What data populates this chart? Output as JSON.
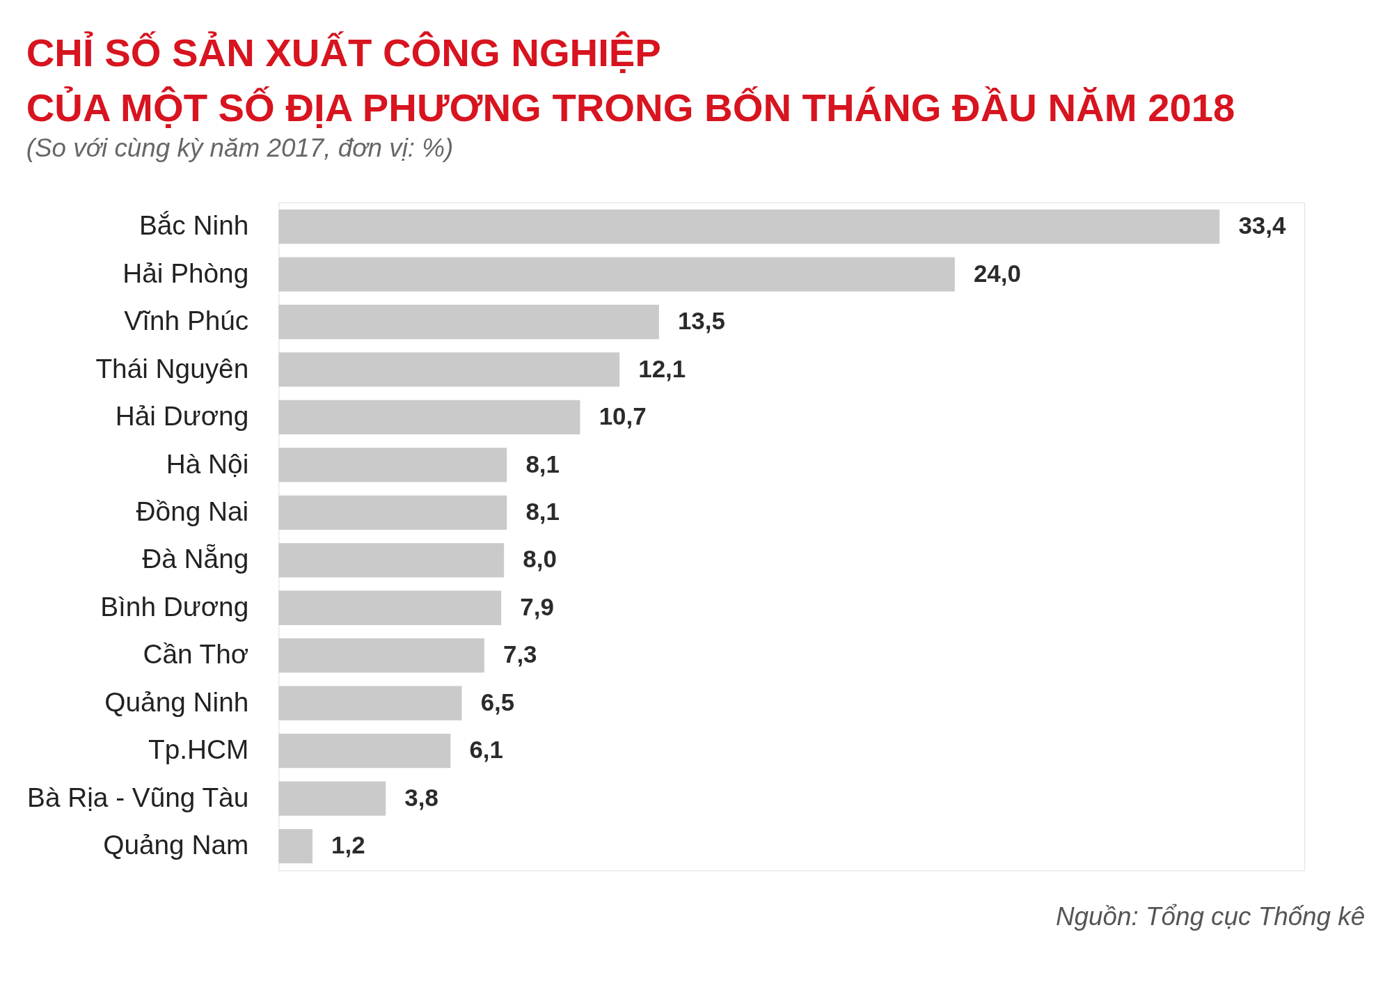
{
  "chart_data": {
    "type": "bar",
    "orientation": "horizontal",
    "title": [
      "CHỈ SỐ SẢN XUẤT CÔNG NGHIỆP",
      "CỦA MỘT SỐ ĐỊA PHƯƠNG TRONG BỐN THÁNG ĐẦU NĂM 2018"
    ],
    "subtitle": "(So với cùng kỳ năm 2017, đơn vị: %)",
    "categories": [
      "Bắc Ninh",
      "Hải Phòng",
      "Vĩnh Phúc",
      "Thái Nguyên",
      "Hải Dương",
      "Hà Nội",
      "Đồng Nai",
      "Đà Nẵng",
      "Bình Dương",
      "Cần Thơ",
      "Quảng Ninh",
      "Tp.HCM",
      "Bà Rịa - Vũng Tàu",
      "Quảng Nam"
    ],
    "values": [
      33.4,
      24.0,
      13.5,
      12.1,
      10.7,
      8.1,
      8.1,
      8.0,
      7.9,
      7.3,
      6.5,
      6.1,
      3.8,
      1.2
    ],
    "value_labels": [
      "33,4",
      "24,0",
      "13,5",
      "12,1",
      "10,7",
      "8,1",
      "8,1",
      "8,0",
      "7,9",
      "7,3",
      "6,5",
      "6,1",
      "3,8",
      "1,2"
    ],
    "color": "#cbcaca",
    "grid": false,
    "tick_labels": "y",
    "annotations": [
      "Nguồn: Tổng cục Thống kê"
    ]
  }
}
